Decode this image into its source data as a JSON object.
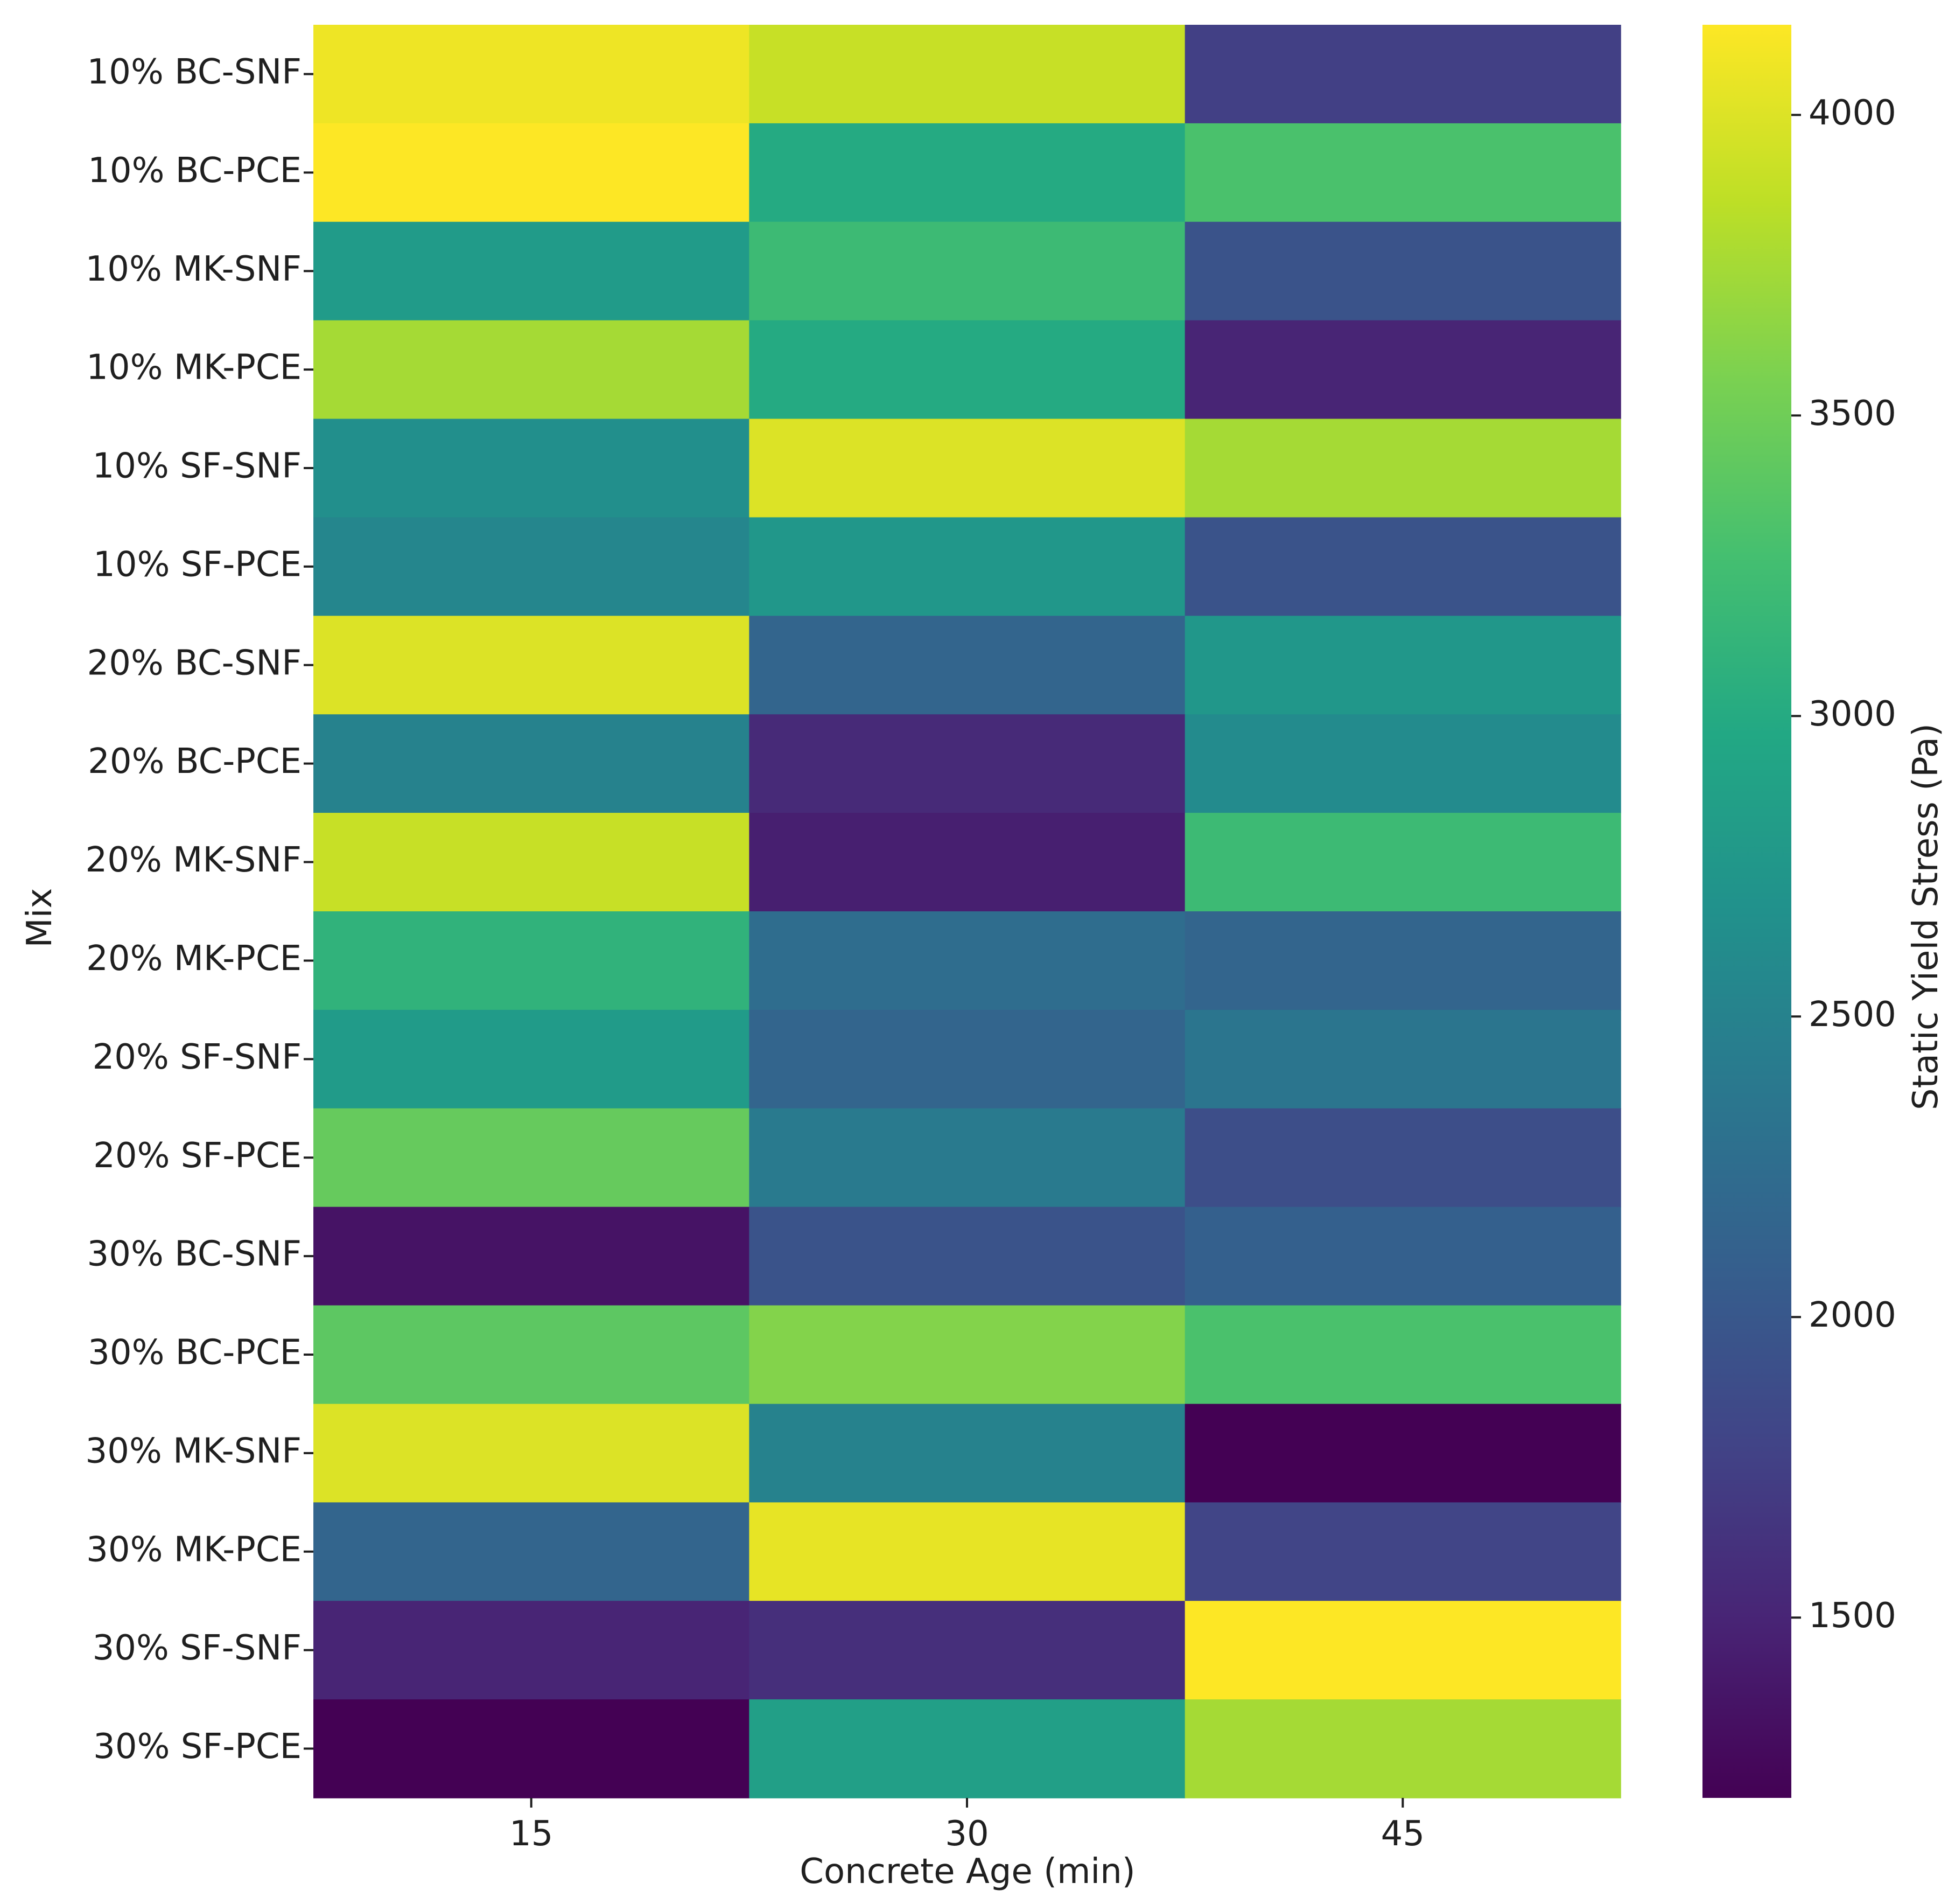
{
  "chart_data": {
    "type": "heatmap",
    "xlabel": "Concrete Age (min)",
    "ylabel": "Mix",
    "colorbar_label": "Static Yield Stress (Pa)",
    "colormap": "viridis",
    "x_categories": [
      "15",
      "30",
      "45"
    ],
    "y_categories": [
      "10% BC-SNF",
      "10% BC-PCE",
      "10% MK-SNF",
      "10% MK-PCE",
      "10% SF-SNF",
      "10% SF-PCE",
      "20% BC-SNF",
      "20% BC-PCE",
      "20% MK-SNF",
      "20% MK-PCE",
      "20% SF-SNF",
      "20% SF-PCE",
      "30% BC-SNF",
      "30% BC-PCE",
      "30% MK-SNF",
      "30% MK-PCE",
      "30% SF-SNF",
      "30% SF-PCE"
    ],
    "values": [
      [
        4080,
        3900,
        1750
      ],
      [
        4150,
        3000,
        3300
      ],
      [
        2800,
        3200,
        1950
      ],
      [
        3750,
        3000,
        1500
      ],
      [
        2650,
        4000,
        3750
      ],
      [
        2550,
        2750,
        1950
      ],
      [
        4000,
        2150,
        2750
      ],
      [
        2500,
        1550,
        2600
      ],
      [
        3900,
        1450,
        3200
      ],
      [
        3100,
        2250,
        2150
      ],
      [
        2800,
        2150,
        2350
      ],
      [
        3450,
        2400,
        1900
      ],
      [
        1350,
        1950,
        2100
      ],
      [
        3400,
        3600,
        3300
      ],
      [
        4000,
        2500,
        1200
      ],
      [
        2150,
        4050,
        1800
      ],
      [
        1500,
        1600,
        4150
      ],
      [
        1200,
        2850,
        3750
      ]
    ],
    "vmin": 1200,
    "vmax": 4150,
    "colorbar_ticks": [
      1500,
      2000,
      2500,
      3000,
      3500,
      4000
    ]
  }
}
